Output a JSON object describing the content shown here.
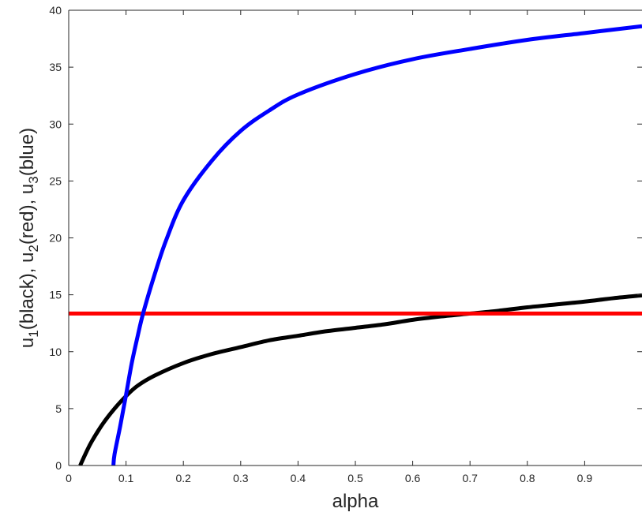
{
  "chart_data": {
    "type": "line",
    "title": "",
    "xlabel": "alpha",
    "ylabel_parts": [
      "u",
      "1",
      "(black), u",
      "2",
      "(red), u",
      "3",
      "(blue)"
    ],
    "xlim": [
      0,
      1
    ],
    "ylim": [
      0,
      40
    ],
    "x_ticks": [
      0,
      0.1,
      0.2,
      0.3,
      0.4,
      0.5,
      0.6,
      0.7,
      0.8,
      0.9
    ],
    "x_tick_labels": [
      "0",
      "0.1",
      "0.2",
      "0.3",
      "0.4",
      "0.5",
      "0.6",
      "0.7",
      "0.8",
      "0.9"
    ],
    "y_ticks": [
      0,
      5,
      10,
      15,
      20,
      25,
      30,
      35,
      40
    ],
    "y_tick_labels": [
      "0",
      "5",
      "10",
      "15",
      "20",
      "25",
      "30",
      "35",
      "40"
    ],
    "grid": false,
    "series": [
      {
        "color": "#000000",
        "x": [
          0.02,
          0.03,
          0.04,
          0.06,
          0.08,
          0.1,
          0.12,
          0.15,
          0.2,
          0.25,
          0.3,
          0.35,
          0.4,
          0.45,
          0.5,
          0.55,
          0.6,
          0.65,
          0.7,
          0.75,
          0.8,
          0.85,
          0.9,
          0.95,
          1.0
        ],
        "y": [
          0,
          1.1,
          2.1,
          3.7,
          5.0,
          6.1,
          7.0,
          7.9,
          9.0,
          9.8,
          10.4,
          11.0,
          11.4,
          11.8,
          12.1,
          12.4,
          12.8,
          13.1,
          13.35,
          13.6,
          13.9,
          14.15,
          14.4,
          14.7,
          14.95
        ]
      },
      {
        "color": "#ff0000",
        "x": [
          0,
          1.0
        ],
        "y": [
          13.35,
          13.35
        ]
      },
      {
        "color": "#0000ff",
        "x": [
          0.078,
          0.08,
          0.09,
          0.1,
          0.11,
          0.12,
          0.13,
          0.15,
          0.17,
          0.2,
          0.25,
          0.3,
          0.35,
          0.4,
          0.5,
          0.6,
          0.7,
          0.8,
          0.9,
          1.0
        ],
        "y": [
          0,
          1.0,
          3.5,
          6.2,
          9.0,
          11.3,
          13.4,
          16.8,
          19.8,
          23.3,
          26.8,
          29.4,
          31.2,
          32.6,
          34.4,
          35.7,
          36.6,
          37.4,
          38.0,
          38.6
        ]
      }
    ]
  }
}
